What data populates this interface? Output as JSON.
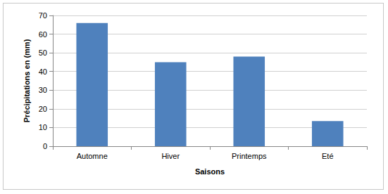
{
  "chart_data": {
    "type": "bar",
    "categories": [
      "Automne",
      "Hiver",
      "Printemps",
      "Eté"
    ],
    "values": [
      66,
      45,
      48,
      13.5
    ],
    "color": "#4f81bd",
    "x_label": "Saisons",
    "y_label": "Précipitations en (mm)",
    "ylim": [
      0,
      70
    ],
    "yticks": [
      0,
      10,
      20,
      30,
      40,
      50,
      60,
      70
    ],
    "grid": true
  }
}
